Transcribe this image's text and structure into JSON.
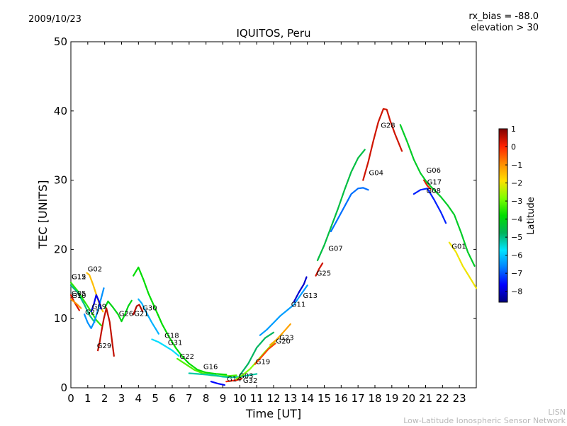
{
  "page": {
    "date": "2009/10/23",
    "rx_bias": "rx_bias = -88.0",
    "elevation": "elevation > 30",
    "footer_short": "LISN",
    "footer_long": "Low-Latitude Ionospheric Sensor Network"
  },
  "chart_data": {
    "type": "line",
    "title": "IQUITOS, Peru",
    "xlabel": "Time [UT]",
    "ylabel": "TEC [UNITS]",
    "xlim": [
      0,
      24
    ],
    "ylim": [
      0,
      50
    ],
    "xticks": [
      0,
      1,
      2,
      3,
      4,
      5,
      6,
      7,
      8,
      9,
      10,
      11,
      12,
      13,
      14,
      15,
      16,
      17,
      18,
      19,
      20,
      21,
      22,
      23
    ],
    "yticks": [
      0,
      10,
      20,
      30,
      40,
      50
    ],
    "colorbar": {
      "label": "Latitude",
      "range": [
        -8.6,
        1.0
      ],
      "ticks": [
        1,
        0,
        -1,
        -2,
        -3,
        -4,
        -5,
        -6,
        -7,
        -8
      ],
      "tick_labels": [
        "1",
        "0",
        "−1",
        "−2",
        "−3",
        "−4",
        "−5",
        "−6",
        "−7",
        "−8"
      ],
      "colormap": [
        "#00007f",
        "#0000ff",
        "#007fff",
        "#00e5ff",
        "#00b35a",
        "#00dd00",
        "#7fff00",
        "#ffe000",
        "#ff8a00",
        "#ff2000",
        "#7f0000"
      ]
    },
    "series": [
      {
        "name": "G15",
        "label_at": [
          0.0,
          15.6
        ],
        "lat": -3.5,
        "points": [
          [
            0.0,
            15.2
          ],
          [
            0.4,
            14.0
          ],
          [
            0.8,
            12.5
          ],
          [
            1.2,
            11.0
          ],
          [
            1.5,
            9.8
          ],
          [
            1.8,
            9.0
          ]
        ]
      },
      {
        "name": "G12",
        "label_at": [
          0.0,
          15.6
        ],
        "lat": -5.0,
        "points": [
          [
            0.0,
            14.8
          ],
          [
            0.4,
            13.8
          ],
          [
            0.8,
            12.0
          ],
          [
            1.1,
            10.5
          ],
          [
            1.4,
            9.5
          ]
        ]
      },
      {
        "name": "G05",
        "label_at": [
          0.0,
          13.2
        ],
        "lat": 0.3,
        "points": [
          [
            0.0,
            13.4
          ],
          [
            0.2,
            12.4
          ],
          [
            0.4,
            11.6
          ],
          [
            0.5,
            11.2
          ]
        ]
      },
      {
        "name": "G10",
        "label_at": [
          0.0,
          12.9
        ],
        "lat": -1.0,
        "points": [
          [
            0.0,
            12.8
          ],
          [
            0.3,
            12.2
          ],
          [
            0.6,
            11.5
          ]
        ]
      },
      {
        "name": "G02",
        "label_at": [
          0.95,
          16.7
        ],
        "lat": -1.5,
        "points": [
          [
            0.95,
            16.6
          ],
          [
            1.1,
            16.3
          ],
          [
            1.3,
            15.0
          ],
          [
            1.5,
            13.5
          ],
          [
            1.7,
            12.0
          ],
          [
            1.9,
            11.0
          ]
        ]
      },
      {
        "name": "G27",
        "label_at": [
          0.8,
          10.5
        ],
        "lat": -6.5,
        "points": [
          [
            0.8,
            10.6
          ],
          [
            1.0,
            9.4
          ],
          [
            1.2,
            8.6
          ],
          [
            1.4,
            9.6
          ],
          [
            1.6,
            11.2
          ],
          [
            1.8,
            13.0
          ],
          [
            1.95,
            14.4
          ]
        ]
      },
      {
        "name": "G09",
        "label_at": [
          1.2,
          11.3
        ],
        "lat": -7.8,
        "points": [
          [
            1.2,
            11.0
          ],
          [
            1.35,
            12.0
          ],
          [
            1.5,
            13.4
          ],
          [
            1.65,
            12.6
          ],
          [
            1.8,
            11.4
          ]
        ]
      },
      {
        "name": "G29",
        "label_at": [
          1.5,
          5.6
        ],
        "lat": 0.5,
        "points": [
          [
            1.6,
            5.4
          ],
          [
            1.7,
            6.5
          ],
          [
            1.8,
            8.0
          ],
          [
            1.95,
            10.0
          ],
          [
            2.1,
            11.5
          ],
          [
            2.3,
            9.5
          ],
          [
            2.45,
            6.5
          ],
          [
            2.55,
            4.6
          ]
        ]
      },
      {
        "name": "G26",
        "label_at": [
          2.8,
          10.3
        ],
        "lat": -4.0,
        "points": [
          [
            2.0,
            11.5
          ],
          [
            2.2,
            12.5
          ],
          [
            2.5,
            11.6
          ],
          [
            2.8,
            10.6
          ],
          [
            3.0,
            9.6
          ],
          [
            3.2,
            10.6
          ],
          [
            3.4,
            11.8
          ],
          [
            3.6,
            12.6
          ]
        ]
      },
      {
        "name": "G21",
        "label_at": [
          3.7,
          10.3
        ],
        "lat": 0.6,
        "points": [
          [
            3.7,
            10.6
          ],
          [
            3.9,
            11.8
          ],
          [
            4.05,
            12.0
          ],
          [
            4.25,
            11.0
          ]
        ]
      },
      {
        "name": "G30",
        "label_at": [
          4.2,
          11.1
        ],
        "lat": -6.2,
        "points": [
          [
            4.0,
            12.8
          ],
          [
            4.2,
            12.2
          ],
          [
            4.4,
            11.2
          ],
          [
            4.6,
            10.3
          ],
          [
            4.8,
            9.4
          ],
          [
            5.0,
            8.6
          ],
          [
            5.2,
            7.8
          ]
        ]
      },
      {
        "name": "G18",
        "label_at": [
          5.5,
          7.1
        ],
        "lat": -3.8,
        "points": [
          [
            3.7,
            16.2
          ],
          [
            4.0,
            17.4
          ],
          [
            4.3,
            15.6
          ],
          [
            4.6,
            13.6
          ],
          [
            5.0,
            11.4
          ],
          [
            5.4,
            9.2
          ],
          [
            5.8,
            7.4
          ],
          [
            6.2,
            5.8
          ],
          [
            6.6,
            4.5
          ],
          [
            7.0,
            3.5
          ],
          [
            7.5,
            2.6
          ],
          [
            8.0,
            2.2
          ],
          [
            8.6,
            2.0
          ],
          [
            9.2,
            1.9
          ]
        ]
      },
      {
        "name": "G31",
        "label_at": [
          5.7,
          6.1
        ],
        "lat": -5.8,
        "points": [
          [
            4.8,
            7.0
          ],
          [
            5.2,
            6.6
          ],
          [
            5.6,
            6.0
          ],
          [
            6.0,
            5.4
          ],
          [
            6.4,
            4.6
          ]
        ]
      },
      {
        "name": "G22",
        "label_at": [
          6.4,
          4.1
        ],
        "lat": -3.2,
        "points": [
          [
            6.3,
            4.2
          ],
          [
            6.8,
            3.4
          ],
          [
            7.3,
            2.6
          ],
          [
            7.8,
            2.1
          ],
          [
            8.3,
            1.8
          ],
          [
            8.8,
            1.7
          ],
          [
            9.3,
            1.7
          ],
          [
            9.8,
            1.8
          ]
        ]
      },
      {
        "name": "G16",
        "label_at": [
          7.8,
          2.6
        ],
        "lat": -5.2,
        "points": [
          [
            7.0,
            2.1
          ],
          [
            7.5,
            2.0
          ],
          [
            8.0,
            1.9
          ],
          [
            8.5,
            1.8
          ],
          [
            9.0,
            1.6
          ],
          [
            9.5,
            1.5
          ],
          [
            10.0,
            1.6
          ],
          [
            10.5,
            1.8
          ],
          [
            11.0,
            2.0
          ]
        ]
      },
      {
        "name": "G14",
        "label_at": [
          9.2,
          0.8
        ],
        "lat": 0.0,
        "points": [
          [
            9.2,
            0.9
          ],
          [
            9.5,
            1.0
          ],
          [
            9.8,
            1.1
          ],
          [
            10.1,
            1.3
          ]
        ]
      },
      {
        "name": "G32",
        "label_at": [
          10.15,
          0.6
        ],
        "lat": -7.6,
        "points": [
          [
            8.3,
            0.9
          ],
          [
            8.7,
            0.6
          ],
          [
            9.1,
            0.4
          ]
        ]
      },
      {
        "name": "G03",
        "label_at": [
          9.9,
          1.3
        ],
        "lat": -2.8,
        "points": [
          [
            9.8,
            1.3
          ],
          [
            10.2,
            1.9
          ],
          [
            10.6,
            2.7
          ],
          [
            11.0,
            3.8
          ],
          [
            11.5,
            5.2
          ],
          [
            12.0,
            6.5
          ],
          [
            12.5,
            7.8
          ]
        ]
      },
      {
        "name": "G19",
        "label_at": [
          10.9,
          3.3
        ],
        "lat": -4.8,
        "points": [
          [
            10.0,
            1.8
          ],
          [
            10.5,
            3.5
          ],
          [
            11.0,
            5.8
          ],
          [
            11.5,
            7.2
          ],
          [
            12.0,
            8.0
          ]
        ]
      },
      {
        "name": "G20",
        "label_at": [
          12.1,
          6.3
        ],
        "lat": -0.3,
        "points": [
          [
            10.9,
            3.4
          ],
          [
            11.3,
            4.5
          ],
          [
            11.7,
            5.6
          ],
          [
            12.1,
            6.4
          ]
        ]
      },
      {
        "name": "G23",
        "label_at": [
          12.3,
          6.8
        ],
        "lat": -1.2,
        "points": [
          [
            11.8,
            6.2
          ],
          [
            12.2,
            7.0
          ],
          [
            12.6,
            8.1
          ],
          [
            13.0,
            9.2
          ]
        ]
      },
      {
        "name": "G11",
        "label_at": [
          13.0,
          11.6
        ],
        "lat": -6.4,
        "points": [
          [
            11.2,
            7.6
          ],
          [
            11.6,
            8.4
          ],
          [
            12.0,
            9.4
          ],
          [
            12.4,
            10.4
          ],
          [
            12.8,
            11.2
          ],
          [
            13.2,
            12.0
          ],
          [
            13.6,
            13.4
          ],
          [
            14.0,
            14.8
          ]
        ]
      },
      {
        "name": "G13",
        "label_at": [
          13.7,
          12.9
        ],
        "lat": -8.0,
        "points": [
          [
            13.2,
            12.4
          ],
          [
            13.5,
            13.8
          ],
          [
            13.8,
            15.0
          ],
          [
            13.95,
            16.0
          ]
        ]
      },
      {
        "name": "G25",
        "label_at": [
          14.5,
          16.1
        ],
        "lat": 0.4,
        "points": [
          [
            14.5,
            16.2
          ],
          [
            14.7,
            17.2
          ],
          [
            14.9,
            18.0
          ]
        ]
      },
      {
        "name": "G07",
        "label_at": [
          15.2,
          19.7
        ],
        "lat": -4.5,
        "points": [
          [
            14.6,
            18.4
          ],
          [
            15.0,
            20.6
          ],
          [
            15.4,
            23.2
          ],
          [
            15.8,
            25.8
          ],
          [
            16.2,
            28.6
          ],
          [
            16.6,
            31.2
          ],
          [
            17.0,
            33.2
          ],
          [
            17.4,
            34.4
          ]
        ]
      },
      {
        "name": "G04",
        "label_at": [
          17.6,
          30.6
        ],
        "lat": -6.8,
        "points": [
          [
            15.4,
            22.6
          ],
          [
            15.8,
            24.4
          ],
          [
            16.2,
            26.2
          ],
          [
            16.6,
            28.0
          ],
          [
            17.0,
            28.8
          ],
          [
            17.3,
            28.9
          ],
          [
            17.6,
            28.6
          ]
        ]
      },
      {
        "name": "G28",
        "label_at": [
          18.3,
          37.5
        ],
        "lat": 0.4,
        "points": [
          [
            17.3,
            30.0
          ],
          [
            17.6,
            32.6
          ],
          [
            17.9,
            35.6
          ],
          [
            18.2,
            38.4
          ],
          [
            18.5,
            40.3
          ],
          [
            18.7,
            40.2
          ],
          [
            18.9,
            38.6
          ],
          [
            19.2,
            36.6
          ],
          [
            19.6,
            34.2
          ]
        ]
      },
      {
        "name": "G17",
        "label_at": [
          21.05,
          29.3
        ],
        "lat": 0.2,
        "points": [
          [
            20.9,
            30.0
          ],
          [
            21.1,
            29.2
          ],
          [
            21.3,
            28.7
          ]
        ]
      },
      {
        "name": "G06",
        "label_at": [
          21.0,
          31.0
        ],
        "lat": -4.2,
        "points": [
          [
            19.5,
            38.0
          ],
          [
            19.9,
            35.6
          ],
          [
            20.3,
            33.0
          ],
          [
            20.7,
            31.0
          ],
          [
            21.1,
            29.6
          ],
          [
            21.5,
            28.6
          ],
          [
            21.9,
            27.6
          ],
          [
            22.3,
            26.4
          ],
          [
            22.7,
            25.0
          ],
          [
            23.1,
            22.4
          ],
          [
            23.5,
            19.6
          ],
          [
            23.9,
            17.6
          ]
        ]
      },
      {
        "name": "G08",
        "label_at": [
          21.0,
          28.0
        ],
        "lat": -7.4,
        "points": [
          [
            20.3,
            28.0
          ],
          [
            20.7,
            28.6
          ],
          [
            21.1,
            28.8
          ],
          [
            21.5,
            27.2
          ],
          [
            21.9,
            25.4
          ],
          [
            22.2,
            23.8
          ]
        ]
      },
      {
        "name": "G01",
        "label_at": [
          22.5,
          20.0
        ],
        "lat": -2.0,
        "points": [
          [
            22.4,
            21.0
          ],
          [
            22.8,
            19.6
          ],
          [
            23.2,
            17.6
          ],
          [
            23.6,
            16.0
          ],
          [
            24.0,
            14.4
          ]
        ]
      }
    ]
  }
}
